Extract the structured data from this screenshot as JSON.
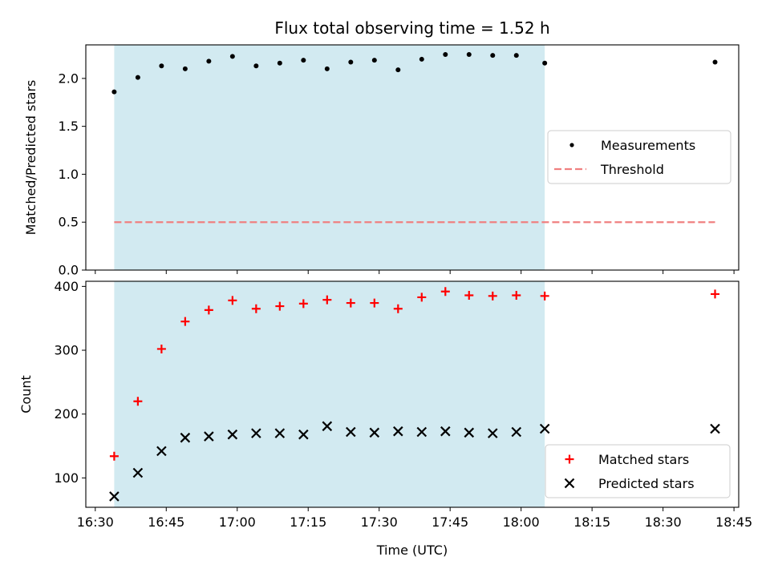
{
  "figure": {
    "title": "Flux total observing time = 1.52 h",
    "xlabel": "Time (UTC)"
  },
  "colors": {
    "shade": "#add8e6",
    "threshold": "#f08080",
    "matched": "#ff0000",
    "predicted": "#000000",
    "measurement": "#000000"
  },
  "chart_data": [
    {
      "type": "scatter",
      "name": "ratio-panel",
      "ylabel": "Matched/Predicted stars",
      "ylim": [
        0,
        2.35
      ],
      "yticks": [
        0.0,
        0.5,
        1.0,
        1.5,
        2.0
      ],
      "ytick_labels": [
        "0.0",
        "0.5",
        "1.0",
        "1.5",
        "2.0"
      ],
      "xlim": [
        "16:28",
        "18:46"
      ],
      "xticks": [
        "16:30",
        "16:45",
        "17:00",
        "17:15",
        "17:30",
        "17:45",
        "18:00",
        "18:15",
        "18:30",
        "18:45"
      ],
      "x_tick_labels_shown": false,
      "shaded_interval": [
        "16:34",
        "18:05"
      ],
      "legend": {
        "placement": "center right",
        "entries": [
          "Measurements",
          "Threshold"
        ]
      },
      "series": [
        {
          "name": "Measurements",
          "marker": "dot",
          "x": [
            "16:34",
            "16:39",
            "16:44",
            "16:49",
            "16:54",
            "16:59",
            "17:04",
            "17:09",
            "17:14",
            "17:19",
            "17:24",
            "17:29",
            "17:34",
            "17:39",
            "17:44",
            "17:49",
            "17:54",
            "17:59",
            "18:05",
            "18:41"
          ],
          "y": [
            1.86,
            2.01,
            2.13,
            2.1,
            2.18,
            2.23,
            2.13,
            2.16,
            2.19,
            2.1,
            2.17,
            2.19,
            2.09,
            2.2,
            2.25,
            2.25,
            2.24,
            2.24,
            2.16,
            2.17
          ]
        },
        {
          "name": "Threshold",
          "style": "dashed-line",
          "x": [
            "16:34",
            "18:41"
          ],
          "y": [
            0.5,
            0.5
          ]
        }
      ]
    },
    {
      "type": "scatter",
      "name": "count-panel",
      "ylabel": "Count",
      "ylim": [
        54,
        408
      ],
      "yticks": [
        100,
        200,
        300,
        400
      ],
      "ytick_labels": [
        "100",
        "200",
        "300",
        "400"
      ],
      "xlim": [
        "16:28",
        "18:46"
      ],
      "xticks": [
        "16:30",
        "16:45",
        "17:00",
        "17:15",
        "17:30",
        "17:45",
        "18:00",
        "18:15",
        "18:30",
        "18:45"
      ],
      "xtick_labels": [
        "16:30",
        "16:45",
        "17:00",
        "17:15",
        "17:30",
        "17:45",
        "18:00",
        "18:15",
        "18:30",
        "18:45"
      ],
      "shaded_interval": [
        "16:34",
        "18:05"
      ],
      "legend": {
        "placement": "lower right",
        "entries": [
          "Matched stars",
          "Predicted stars"
        ]
      },
      "series": [
        {
          "name": "Matched stars",
          "marker": "plus",
          "x": [
            "16:34",
            "16:39",
            "16:44",
            "16:49",
            "16:54",
            "16:59",
            "17:04",
            "17:09",
            "17:14",
            "17:19",
            "17:24",
            "17:29",
            "17:34",
            "17:39",
            "17:44",
            "17:49",
            "17:54",
            "17:59",
            "18:05",
            "18:41"
          ],
          "y": [
            134,
            220,
            302,
            345,
            363,
            378,
            365,
            369,
            373,
            379,
            374,
            374,
            365,
            383,
            392,
            386,
            385,
            386,
            385,
            388
          ]
        },
        {
          "name": "Predicted stars",
          "marker": "x",
          "x": [
            "16:34",
            "16:39",
            "16:44",
            "16:49",
            "16:54",
            "16:59",
            "17:04",
            "17:09",
            "17:14",
            "17:19",
            "17:24",
            "17:29",
            "17:34",
            "17:39",
            "17:44",
            "17:49",
            "17:54",
            "17:59",
            "18:05",
            "18:41"
          ],
          "y": [
            71,
            108,
            142,
            163,
            165,
            168,
            170,
            170,
            168,
            181,
            172,
            171,
            173,
            172,
            173,
            171,
            170,
            172,
            177,
            177
          ]
        }
      ]
    }
  ]
}
